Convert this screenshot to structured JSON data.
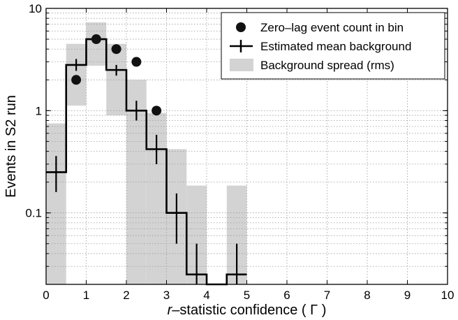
{
  "chart_data": {
    "type": "histogram",
    "xlabel_prefix": "r",
    "xlabel_rest": "–statistic confidence ( Γ )",
    "ylabel": "Events in S2 run",
    "xlim": [
      0,
      10
    ],
    "ylim": [
      0.02,
      10
    ],
    "yscale": "log",
    "grid": true,
    "legend_position": "top-right",
    "x_ticks": [
      0,
      1,
      2,
      3,
      4,
      5,
      6,
      7,
      8,
      9,
      10
    ],
    "y_ticks": [
      {
        "value": 0.1,
        "label": "0.1"
      },
      {
        "value": 1,
        "label": "1"
      },
      {
        "value": 10,
        "label": "10"
      }
    ],
    "bin_edges": [
      0,
      0.5,
      1,
      1.5,
      2,
      2.5,
      3,
      3.5,
      4,
      4.5,
      5
    ],
    "series": [
      {
        "name": "Zero–lag event count in bin",
        "kind": "points",
        "points": [
          {
            "x": 0.75,
            "y": 2
          },
          {
            "x": 1.25,
            "y": 5
          },
          {
            "x": 1.75,
            "y": 4
          },
          {
            "x": 2.25,
            "y": 3
          },
          {
            "x": 2.75,
            "y": 1
          }
        ]
      },
      {
        "name": "Estimated mean background",
        "kind": "step",
        "values": [
          0.25,
          2.8,
          5.0,
          2.5,
          1.0,
          0.42,
          0.1,
          0.025,
          0.0,
          0.025
        ],
        "errors": [
          {
            "x": 0.25,
            "lo": 0.16,
            "hi": 0.36
          },
          {
            "x": 0.75,
            "lo": 2.45,
            "hi": 3.2
          },
          {
            "x": 1.25,
            "lo": 4.6,
            "hi": 5.4
          },
          {
            "x": 1.75,
            "lo": 2.2,
            "hi": 2.8
          },
          {
            "x": 2.25,
            "lo": 0.8,
            "hi": 1.25
          },
          {
            "x": 2.75,
            "lo": 0.3,
            "hi": 0.58
          },
          {
            "x": 3.25,
            "lo": 0.05,
            "hi": 0.155
          },
          {
            "x": 3.75,
            "lo": 0.02,
            "hi": 0.05
          },
          {
            "x": 4.75,
            "lo": 0.02,
            "hi": 0.05
          }
        ]
      },
      {
        "name": "Background spread (rms)",
        "kind": "band",
        "bands": [
          {
            "lo": 0.02,
            "hi": 0.75
          },
          {
            "lo": 1.12,
            "hi": 4.5
          },
          {
            "lo": 2.75,
            "hi": 7.3
          },
          {
            "lo": 0.9,
            "hi": 4.5
          },
          {
            "lo": 0.02,
            "hi": 2.0
          },
          {
            "lo": 0.02,
            "hi": 0.95
          },
          {
            "lo": 0.02,
            "hi": 0.42
          },
          {
            "lo": 0.02,
            "hi": 0.185
          },
          null,
          {
            "lo": 0.02,
            "hi": 0.185
          }
        ]
      }
    ]
  }
}
